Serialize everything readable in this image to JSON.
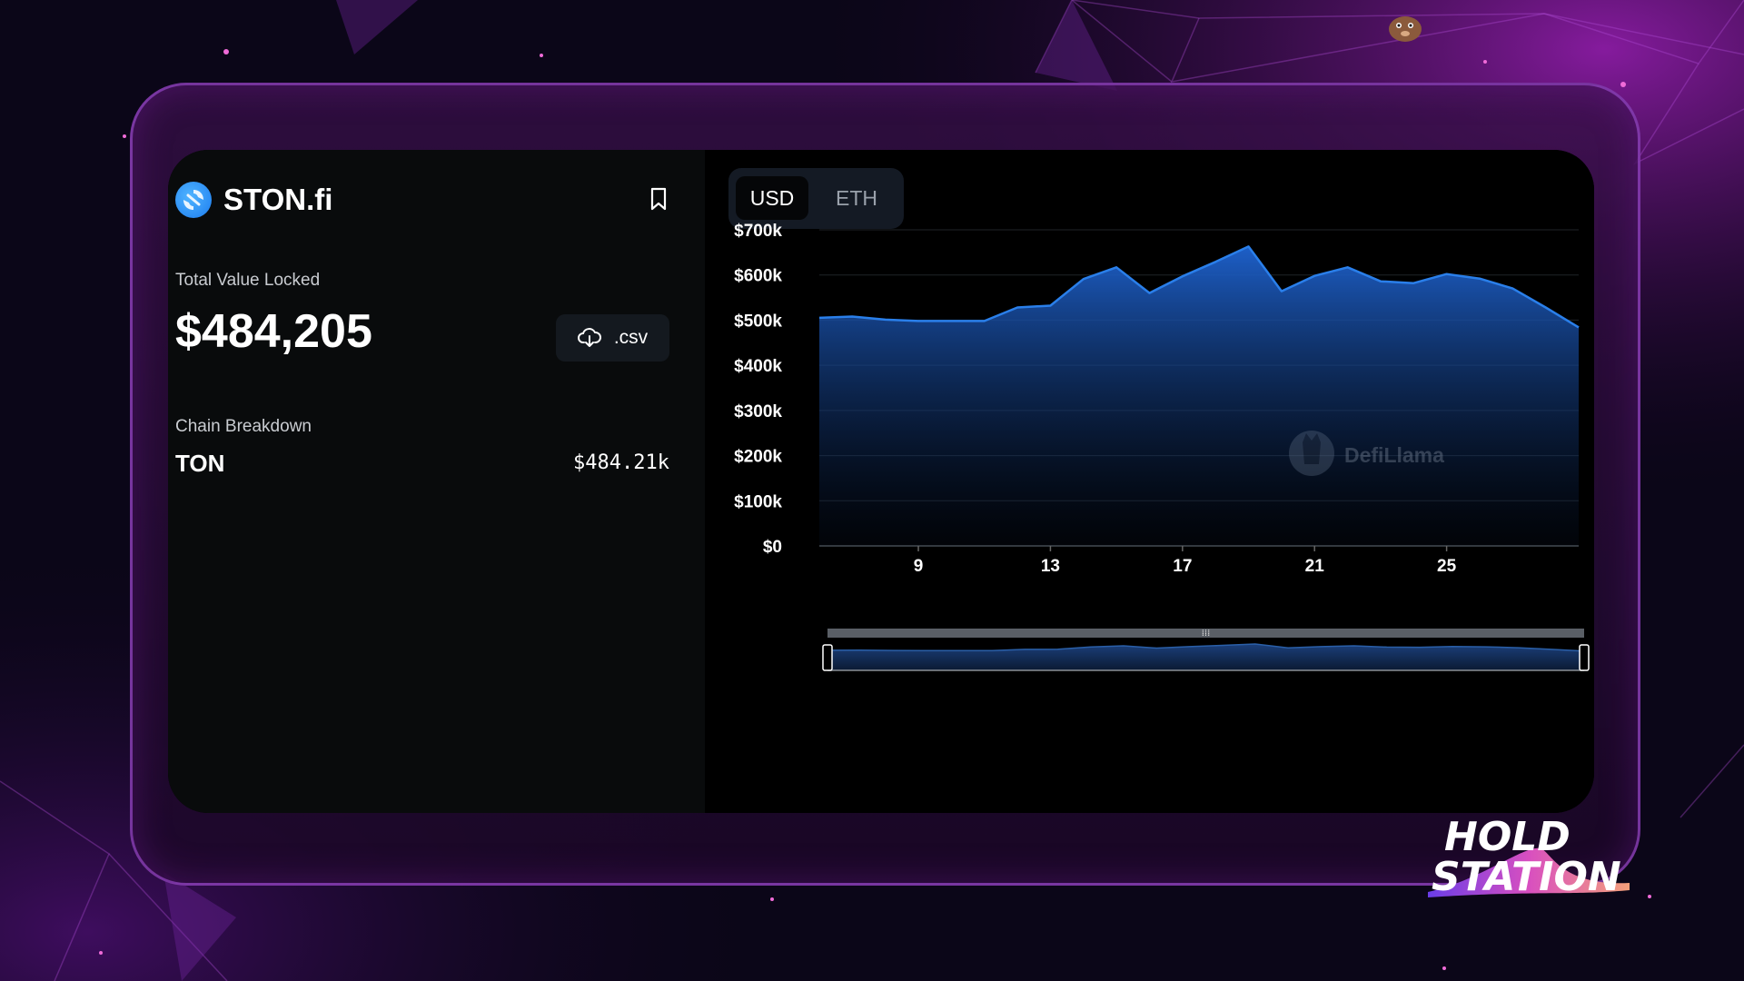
{
  "protocol": {
    "name": "STON.fi",
    "logo_icon": "ston-fi-logo-icon",
    "bookmark_icon": "bookmark-icon"
  },
  "tvl": {
    "label": "Total Value Locked",
    "value": "$484,205",
    "download_label": ".csv",
    "download_icon": "cloud-download-icon"
  },
  "chain_breakdown": {
    "label": "Chain Breakdown",
    "items": [
      {
        "chain": "TON",
        "value": "$484.21k"
      }
    ]
  },
  "currency_toggle": {
    "options": [
      "USD",
      "ETH"
    ],
    "selected": "USD"
  },
  "watermark": "DefiLlama",
  "brand": {
    "line1": "HOLD",
    "line2": "STATION"
  },
  "colors": {
    "accent_blue": "#2a7fea",
    "area_top": "#1d5fc8",
    "frame_purple": "#9444c4"
  },
  "chart_data": {
    "type": "area",
    "x": [
      6,
      7,
      8,
      9,
      10,
      11,
      12,
      13,
      14,
      15,
      16,
      17,
      18,
      19,
      20,
      21,
      22,
      23,
      24,
      25,
      26,
      27,
      28,
      29
    ],
    "values": [
      505000,
      508000,
      501000,
      498000,
      498000,
      498000,
      528000,
      532000,
      591000,
      617000,
      560000,
      597000,
      629000,
      663000,
      564000,
      598000,
      617000,
      586000,
      582000,
      602000,
      592000,
      570000,
      528000,
      484000
    ],
    "xticks": [
      "9",
      "13",
      "17",
      "21",
      "25"
    ],
    "yticks": [
      "$0",
      "$100k",
      "$200k",
      "$300k",
      "$400k",
      "$500k",
      "$600k",
      "$700k"
    ],
    "ylim": [
      0,
      700000
    ],
    "grid": true
  }
}
